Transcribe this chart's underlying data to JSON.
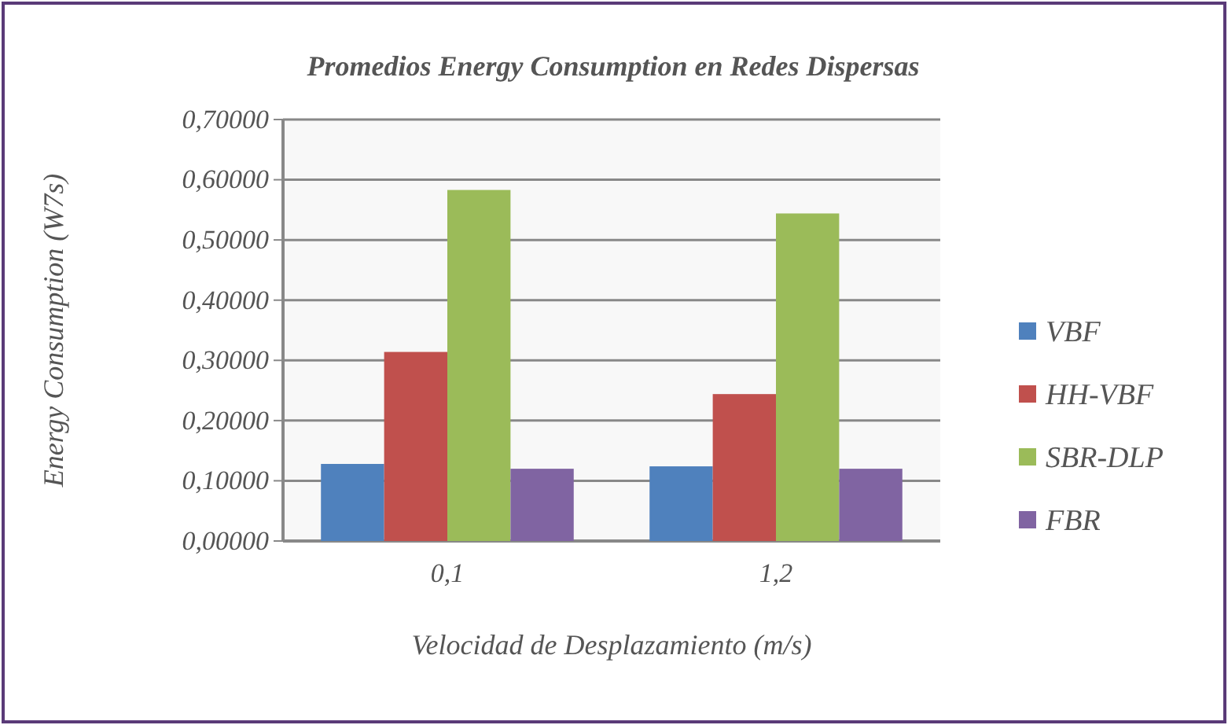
{
  "chart_data": {
    "type": "bar",
    "title": "Promedios Energy Consumption en Redes Dispersas",
    "xlabel": "Velocidad de Desplazamiento (m/s)",
    "ylabel": "Energy Consumption (W7s)",
    "categories": [
      "0,1",
      "1,2"
    ],
    "series": [
      {
        "name": "VBF",
        "color": "#4f81bd",
        "values": [
          0.128,
          0.124
        ]
      },
      {
        "name": "HH-VBF",
        "color": "#c0504d",
        "values": [
          0.314,
          0.244
        ]
      },
      {
        "name": "SBR-DLP",
        "color": "#9bbb59",
        "values": [
          0.583,
          0.544
        ]
      },
      {
        "name": "FBR",
        "color": "#8064a2",
        "values": [
          0.12,
          0.12
        ]
      }
    ],
    "ylim": [
      0,
      0.7
    ],
    "yticks": [
      {
        "value": 0,
        "label": "0,00000"
      },
      {
        "value": 0.1,
        "label": "0,10000"
      },
      {
        "value": 0.2,
        "label": "0,20000"
      },
      {
        "value": 0.3,
        "label": "0,30000"
      },
      {
        "value": 0.4,
        "label": "0,40000"
      },
      {
        "value": 0.5,
        "label": "0,50000"
      },
      {
        "value": 0.6,
        "label": "0,60000"
      },
      {
        "value": 0.7,
        "label": "0,70000"
      }
    ],
    "grid": "y",
    "legend": "right"
  }
}
